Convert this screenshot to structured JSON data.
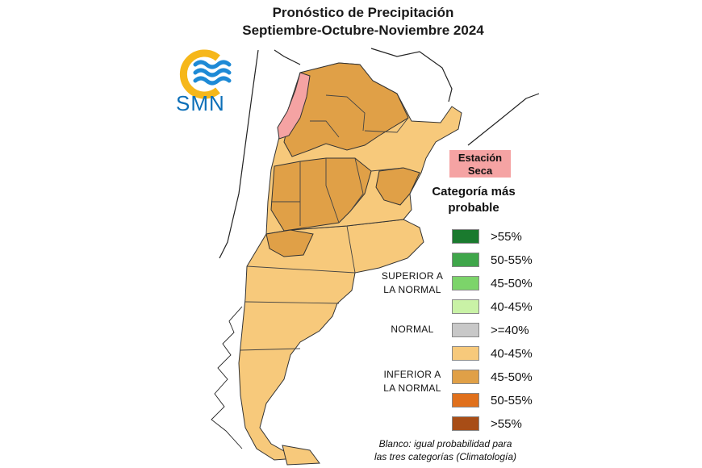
{
  "header": {
    "title_line1": "Pronóstico de Precipitación",
    "title_line2": "Septiembre-Octubre-Noviembre 2024"
  },
  "logo": {
    "text": "SMN",
    "icon": "smn-sun-waves-icon",
    "ring_color": "#f6b71a",
    "wave_color": "#1e8ad6"
  },
  "dry_season": {
    "label_line1": "Estación",
    "label_line2": "Seca",
    "color": "#f5a3a3"
  },
  "legend": {
    "heading_line1": "Categoría más",
    "heading_line2": "probable",
    "superior_line1": "SUPERIOR A",
    "superior_line2": "LA NORMAL",
    "normal_label": "NORMAL",
    "inferior_line1": "INFERIOR A",
    "inferior_line2": "LA NORMAL",
    "items": [
      {
        "range": ">55%",
        "color": "#1a7a2e"
      },
      {
        "range": "50-55%",
        "color": "#3fa64a"
      },
      {
        "range": "45-50%",
        "color": "#7cd46a"
      },
      {
        "range": "40-45%",
        "color": "#c9f2a6"
      },
      {
        "range": ">=40%",
        "color": "#c8c8c8"
      },
      {
        "range": "40-45%",
        "color": "#f7c97b"
      },
      {
        "range": "45-50%",
        "color": "#e0a047"
      },
      {
        "range": "50-55%",
        "color": "#e0701c"
      },
      {
        "range": ">55%",
        "color": "#a84d16"
      }
    ]
  },
  "footnote": {
    "line1": "Blanco: igual probabilidad para",
    "line2": "las tres categorías (Climatología)"
  }
}
